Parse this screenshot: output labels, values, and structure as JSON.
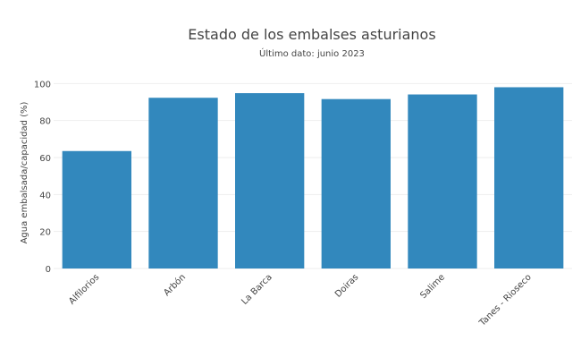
{
  "chart_data": {
    "type": "bar",
    "title": "Estado de los embalses asturianos",
    "subtitle": "Último dato: junio 2023",
    "xlabel": "",
    "ylabel": "Agua embalsada/capacidad (%)",
    "categories": [
      "Alfilorios",
      "Arbón",
      "La Barca",
      "Doiras",
      "Salime",
      "Tanes - Rioseco"
    ],
    "values": [
      63.5,
      92.3,
      94.8,
      91.6,
      94.1,
      98.0
    ],
    "ylim": [
      0,
      105
    ],
    "yticks": [
      0,
      20,
      40,
      60,
      80,
      100
    ],
    "bar_color": "#3288bd",
    "grid": true,
    "legend": "none"
  }
}
